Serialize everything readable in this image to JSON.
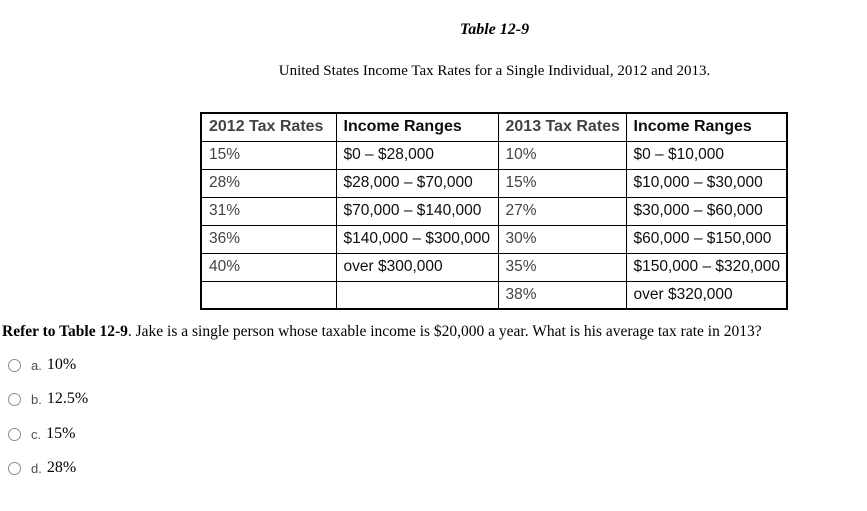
{
  "page": {
    "title": "Table 12-9",
    "subtitle": "United States Income Tax Rates for a Single Individual, 2012 and 2013."
  },
  "table": {
    "headers": [
      "2012 Tax Rates",
      "Income Ranges",
      "2013 Tax Rates",
      "Income Ranges"
    ],
    "rows": [
      [
        "15%",
        "$0 – $28,000",
        "10%",
        "$0 – $10,000"
      ],
      [
        "28%",
        "$28,000 – $70,000",
        "15%",
        "$10,000 – $30,000"
      ],
      [
        "31%",
        "$70,000 – $140,000",
        "27%",
        "$30,000 – $60,000"
      ],
      [
        "36%",
        "$140,000 – $300,000",
        "30%",
        "$60,000 – $150,000"
      ],
      [
        "40%",
        "over $300,000",
        "35%",
        "$150,000 – $320,000"
      ],
      [
        "",
        "",
        "38%",
        "over $320,000"
      ]
    ]
  },
  "question": {
    "bold_prefix": "Refer to Table 12-9",
    "text": ". Jake is a single person whose taxable income is $20,000 a year. What is his average tax rate in 2013?"
  },
  "options": [
    {
      "letter": "a.",
      "value": "10%"
    },
    {
      "letter": "b.",
      "value": "12.5%"
    },
    {
      "letter": "c.",
      "value": "15%"
    },
    {
      "letter": "d.",
      "value": "28%"
    }
  ],
  "colors": {
    "table_border": "#000000",
    "rate_text": "#434343",
    "range_text": "#0d0d0d",
    "radio_border": "#8d8d8d",
    "option_letter": "#4f4f4f"
  }
}
